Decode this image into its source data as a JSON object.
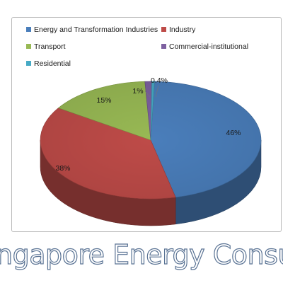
{
  "banner": {
    "title": "ngapore Energy Consumpti"
  },
  "chart_data": {
    "type": "pie",
    "style": "3d",
    "legend": "top",
    "categories": [
      "Energy and Transformation Industries",
      "Industry",
      "Transport",
      "Commercial-institutional",
      "Residential"
    ],
    "values": [
      46,
      38,
      15,
      1,
      0.4
    ],
    "data_labels": [
      "46%",
      "38%",
      "15%",
      "1%",
      "0.4%"
    ],
    "colors": [
      "#4a7ebb",
      "#be4b48",
      "#98b954",
      "#7d60a0",
      "#46aac5"
    ]
  }
}
